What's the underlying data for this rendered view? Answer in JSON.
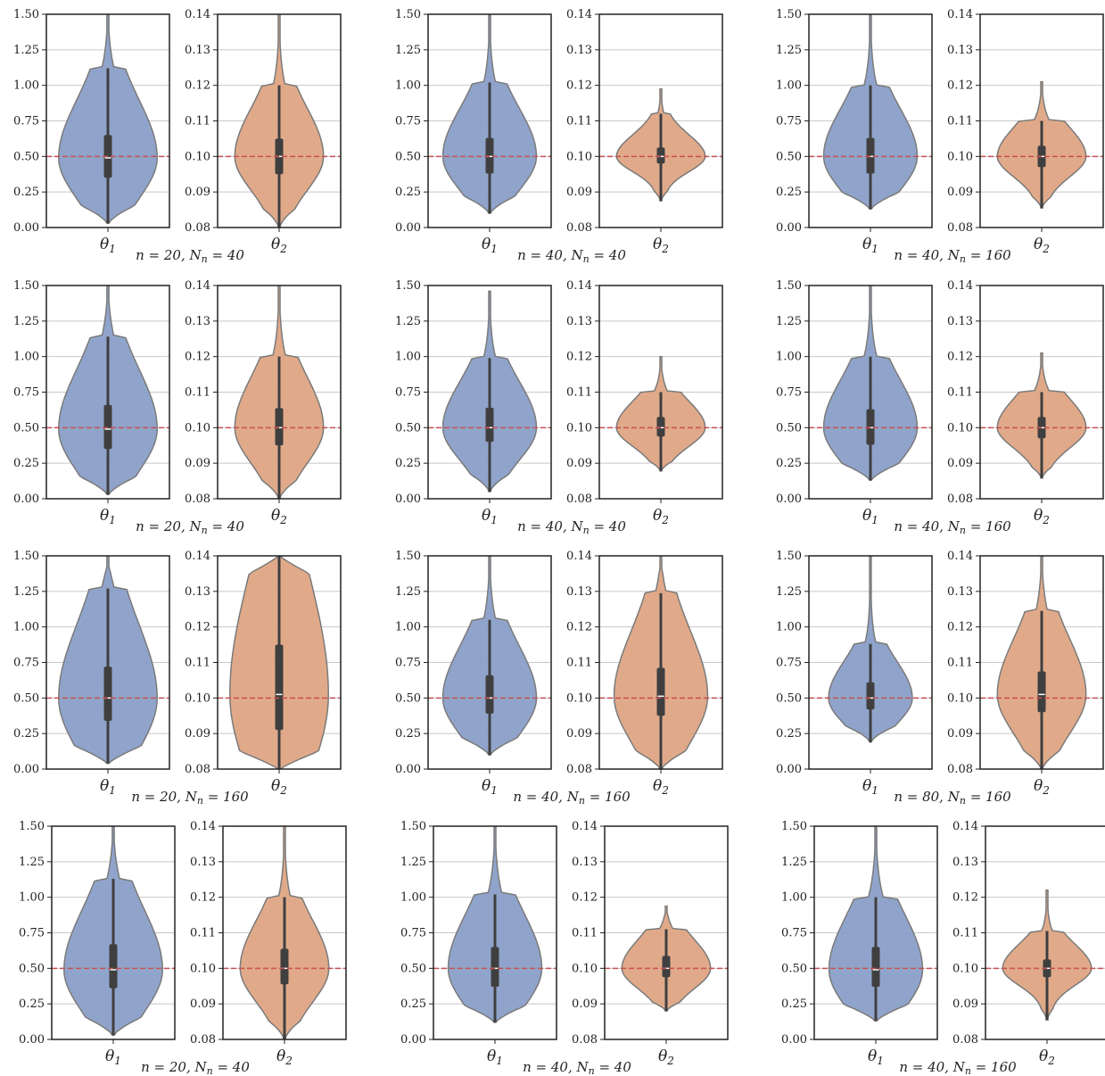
{
  "colors": {
    "theta1_fill": "#8a9fc8",
    "theta2_fill": "#dea584",
    "violin_edge": "#7a7a7a",
    "box": "#3f3f3f",
    "median": "#ffffff",
    "reference_line": "#c8504f",
    "grid": "#c8c8c8",
    "frame": "#222222"
  },
  "axes": {
    "theta1_ticks": [
      "0.00",
      "0.25",
      "0.50",
      "0.75",
      "1.00",
      "1.25",
      "1.50"
    ],
    "theta2_ticks": [
      "0.08",
      "0.09",
      "0.10",
      "0.11",
      "0.12",
      "0.13",
      "0.14"
    ],
    "theta1_label": "θ1",
    "theta2_label": "θ2"
  },
  "chart_data": [
    {
      "type": "violin",
      "caption": "n = 20, N_n = 40",
      "reference": {
        "theta1": 0.5,
        "theta2": 0.1
      },
      "ylim": {
        "theta1": [
          0,
          1.5
        ],
        "theta2": [
          0.08,
          0.14
        ]
      },
      "theta1": {
        "min": 0.03,
        "q1": 0.35,
        "median": 0.49,
        "q3": 0.65,
        "max": 1.12,
        "tail_max": 1.5,
        "width": 1.0
      },
      "theta2": {
        "min": 0.08,
        "q1": 0.095,
        "median": 0.1,
        "q3": 0.105,
        "max": 0.12,
        "tail_max": 0.14,
        "width": 0.9
      }
    },
    {
      "type": "violin",
      "caption": "n = 40, N_n = 40",
      "reference": {
        "theta1": 0.5,
        "theta2": 0.1
      },
      "ylim": {
        "theta1": [
          0,
          1.5
        ],
        "theta2": [
          0.08,
          0.14
        ]
      },
      "theta1": {
        "min": 0.1,
        "q1": 0.38,
        "median": 0.5,
        "q3": 0.63,
        "max": 1.02,
        "tail_max": 1.5,
        "width": 0.95
      },
      "theta2": {
        "min": 0.0875,
        "q1": 0.098,
        "median": 0.1,
        "q3": 0.1025,
        "max": 0.112,
        "tail_max": 0.119,
        "width": 0.9
      }
    },
    {
      "type": "violin",
      "caption": "n = 40, N_n = 160",
      "reference": {
        "theta1": 0.5,
        "theta2": 0.1
      },
      "ylim": {
        "theta1": [
          0,
          1.5
        ],
        "theta2": [
          0.08,
          0.14
        ]
      },
      "theta1": {
        "min": 0.13,
        "q1": 0.38,
        "median": 0.5,
        "q3": 0.63,
        "max": 1.0,
        "tail_max": 1.5,
        "width": 0.95
      },
      "theta2": {
        "min": 0.0855,
        "q1": 0.097,
        "median": 0.1,
        "q3": 0.103,
        "max": 0.11,
        "tail_max": 0.121,
        "width": 0.9
      }
    },
    {
      "type": "violin",
      "caption": "n = 20, N_n = 40",
      "reference": {
        "theta1": 0.5,
        "theta2": 0.1
      },
      "ylim": {
        "theta1": [
          0,
          1.5
        ],
        "theta2": [
          0.08,
          0.14
        ]
      },
      "theta1": {
        "min": 0.03,
        "q1": 0.35,
        "median": 0.49,
        "q3": 0.66,
        "max": 1.14,
        "tail_max": 1.5,
        "width": 1.0
      },
      "theta2": {
        "min": 0.08,
        "q1": 0.095,
        "median": 0.1,
        "q3": 0.1055,
        "max": 0.12,
        "tail_max": 0.14,
        "width": 0.9
      }
    },
    {
      "type": "violin",
      "caption": "n = 40, N_n = 40",
      "reference": {
        "theta1": 0.5,
        "theta2": 0.1
      },
      "ylim": {
        "theta1": [
          0,
          1.5
        ],
        "theta2": [
          0.08,
          0.14
        ]
      },
      "theta1": {
        "min": 0.05,
        "q1": 0.4,
        "median": 0.5,
        "q3": 0.64,
        "max": 0.99,
        "tail_max": 1.46,
        "width": 0.95
      },
      "theta2": {
        "min": 0.0878,
        "q1": 0.0975,
        "median": 0.1,
        "q3": 0.103,
        "max": 0.11,
        "tail_max": 0.12,
        "width": 0.9
      }
    },
    {
      "type": "violin",
      "caption": "n = 40, N_n = 160",
      "reference": {
        "theta1": 0.5,
        "theta2": 0.1
      },
      "ylim": {
        "theta1": [
          0,
          1.5
        ],
        "theta2": [
          0.08,
          0.14
        ]
      },
      "theta1": {
        "min": 0.13,
        "q1": 0.38,
        "median": 0.5,
        "q3": 0.63,
        "max": 1.0,
        "tail_max": 1.5,
        "width": 0.95
      },
      "theta2": {
        "min": 0.0858,
        "q1": 0.097,
        "median": 0.1,
        "q3": 0.103,
        "max": 0.11,
        "tail_max": 0.121,
        "width": 0.9
      }
    },
    {
      "type": "violin",
      "caption": "n = 20, N_n = 160",
      "reference": {
        "theta1": 0.5,
        "theta2": 0.1
      },
      "ylim": {
        "theta1": [
          0,
          1.5
        ],
        "theta2": [
          0.08,
          0.14
        ]
      },
      "theta1": {
        "min": 0.04,
        "q1": 0.34,
        "median": 0.5,
        "q3": 0.72,
        "max": 1.27,
        "tail_max": 1.5,
        "width": 1.0
      },
      "theta2": {
        "min": 0.08,
        "q1": 0.091,
        "median": 0.101,
        "q3": 0.115,
        "max": 0.14,
        "tail_max": 0.14,
        "width": 1.0
      }
    },
    {
      "type": "violin",
      "caption": "n = 40, N_n = 160",
      "reference": {
        "theta1": 0.5,
        "theta2": 0.1
      },
      "ylim": {
        "theta1": [
          0,
          1.5
        ],
        "theta2": [
          0.08,
          0.14
        ]
      },
      "theta1": {
        "min": 0.1,
        "q1": 0.39,
        "median": 0.5,
        "q3": 0.66,
        "max": 1.05,
        "tail_max": 1.5,
        "width": 0.95
      },
      "theta2": {
        "min": 0.08,
        "q1": 0.095,
        "median": 0.1005,
        "q3": 0.1085,
        "max": 0.1295,
        "tail_max": 0.14,
        "width": 0.95
      }
    },
    {
      "type": "violin",
      "caption": "n = 80, N_n = 160",
      "reference": {
        "theta1": 0.5,
        "theta2": 0.1
      },
      "ylim": {
        "theta1": [
          0,
          1.5
        ],
        "theta2": [
          0.08,
          0.14
        ]
      },
      "theta1": {
        "min": 0.19,
        "q1": 0.42,
        "median": 0.5,
        "q3": 0.61,
        "max": 0.88,
        "tail_max": 1.5,
        "width": 0.85
      },
      "theta2": {
        "min": 0.08,
        "q1": 0.096,
        "median": 0.101,
        "q3": 0.1075,
        "max": 0.1245,
        "tail_max": 0.14,
        "width": 0.9
      }
    },
    {
      "type": "violin",
      "caption": "n = 20, N_n = 40",
      "reference": {
        "theta1": 0.5,
        "theta2": 0.1
      },
      "ylim": {
        "theta1": [
          0,
          1.5
        ],
        "theta2": [
          0.08,
          0.14
        ]
      },
      "theta1": {
        "min": 0.03,
        "q1": 0.36,
        "median": 0.49,
        "q3": 0.67,
        "max": 1.13,
        "tail_max": 1.5,
        "width": 1.0
      },
      "theta2": {
        "min": 0.08,
        "q1": 0.0955,
        "median": 0.1,
        "q3": 0.1055,
        "max": 0.12,
        "tail_max": 0.14,
        "width": 0.9
      }
    },
    {
      "type": "violin",
      "caption": "n = 40, N_n = 40",
      "reference": {
        "theta1": 0.5,
        "theta2": 0.1
      },
      "ylim": {
        "theta1": [
          0,
          1.5
        ],
        "theta2": [
          0.08,
          0.14
        ]
      },
      "theta1": {
        "min": 0.12,
        "q1": 0.37,
        "median": 0.5,
        "q3": 0.65,
        "max": 1.02,
        "tail_max": 1.5,
        "width": 0.95
      },
      "theta2": {
        "min": 0.088,
        "q1": 0.0975,
        "median": 0.1,
        "q3": 0.1035,
        "max": 0.111,
        "tail_max": 0.1175,
        "width": 0.9
      }
    },
    {
      "type": "violin",
      "caption": "n = 40, N_n = 160",
      "reference": {
        "theta1": 0.5,
        "theta2": 0.1
      },
      "ylim": {
        "theta1": [
          0,
          1.5
        ],
        "theta2": [
          0.08,
          0.14
        ]
      },
      "theta1": {
        "min": 0.13,
        "q1": 0.37,
        "median": 0.49,
        "q3": 0.65,
        "max": 1.0,
        "tail_max": 1.5,
        "width": 0.95
      },
      "theta2": {
        "min": 0.0855,
        "q1": 0.0975,
        "median": 0.1,
        "q3": 0.1025,
        "max": 0.1105,
        "tail_max": 0.122,
        "width": 0.9
      }
    }
  ]
}
